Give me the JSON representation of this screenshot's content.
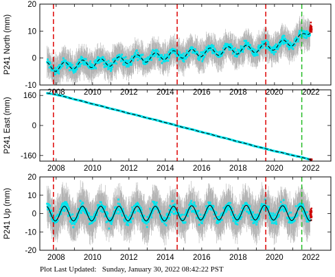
{
  "footer": {
    "label": "Plot Last Updated:",
    "timestamp": "Sunday, January 30, 2022 08:42:22 PST"
  },
  "colors": {
    "data_points": "#00e5ee",
    "error_bars": "#b0b0b0",
    "model": "#000000",
    "equipment_change": "#dd0000",
    "earthquake": "#22bb22",
    "recent_points": "#cc0000"
  },
  "chart_data": [
    {
      "type": "scatter",
      "ylabel": "P241 North (mm)",
      "xlim": [
        2007.1,
        2023.1
      ],
      "ylim": [
        -10,
        20
      ],
      "yticks": [
        -10,
        0,
        10,
        20
      ],
      "xticks": [
        2008,
        2010,
        2012,
        2014,
        2016,
        2018,
        2020,
        2022
      ],
      "xtick_labels": [
        "2008",
        "2010",
        "2012",
        "2014",
        "2016",
        "2018",
        "2020",
        "2022"
      ],
      "ytick_labels": [
        "-10",
        "0",
        "10",
        "20"
      ],
      "grid": false,
      "series": [
        {
          "x": [
            2007.5,
            2008.0,
            2009.0,
            2010.0,
            2011.0,
            2012.0,
            2013.0,
            2014.0,
            2014.6,
            2015.0,
            2016.0,
            2017.0,
            2018.0,
            2019.0,
            2019.5,
            2020.0,
            2021.0,
            2021.5,
            2022.0
          ],
          "y": [
            -3,
            -3.5,
            -2.5,
            -2,
            -1.5,
            -0.5,
            0,
            1,
            1.3,
            1.5,
            2,
            2.5,
            3,
            3.5,
            3.8,
            4.5,
            6,
            7.5,
            11
          ],
          "seasonal_amplitude": 1.5,
          "noise": 2.5
        }
      ],
      "vlines_red": [
        2007.85,
        2014.65,
        2019.52
      ],
      "vlines_green": [
        2021.5
      ]
    },
    {
      "type": "scatter",
      "ylabel": "P241 East (mm)",
      "xlim": [
        2007.1,
        2023.1
      ],
      "ylim": [
        -190,
        190
      ],
      "yticks": [
        -160,
        0,
        160
      ],
      "xticks": [
        2008,
        2010,
        2012,
        2014,
        2016,
        2018,
        2020,
        2022
      ],
      "xtick_labels": [
        "2008",
        "2010",
        "2012",
        "2014",
        "2016",
        "2018",
        "2020",
        "2022"
      ],
      "ytick_labels": [
        "-160",
        "0",
        "160"
      ],
      "grid": false,
      "series": [
        {
          "x": [
            2007.5,
            2008.0,
            2010.0,
            2012.0,
            2014.0,
            2014.6,
            2016.0,
            2018.0,
            2019.5,
            2020.0,
            2021.5,
            2022.0
          ],
          "y": [
            172,
            165,
            115,
            65,
            16,
            0,
            -35,
            -86,
            -124,
            -136,
            -170,
            -182
          ],
          "seasonal_amplitude": 0.5,
          "noise": 2
        }
      ],
      "vlines_red": [
        2007.85,
        2014.65,
        2019.52
      ],
      "vlines_green": [
        2021.5
      ]
    },
    {
      "type": "scatter",
      "ylabel": "P241 Up (mm)",
      "xlim": [
        2007.1,
        2023.1
      ],
      "ylim": [
        -20,
        20
      ],
      "yticks": [
        -20,
        -10,
        0,
        10,
        20
      ],
      "xticks": [
        2008,
        2010,
        2012,
        2014,
        2016,
        2018,
        2020,
        2022
      ],
      "xtick_labels": [
        "2008",
        "2010",
        "2012",
        "2014",
        "2016",
        "2018",
        "2020",
        "2022"
      ],
      "ytick_labels": [
        "-20",
        "-10",
        "0",
        "10",
        "20"
      ],
      "grid": false,
      "series": [
        {
          "x": [
            2007.5,
            2010.0,
            2014.6,
            2016.0,
            2019.5,
            2022.0
          ],
          "y": [
            0,
            0,
            0,
            0.5,
            0.5,
            0
          ],
          "seasonal_amplitude": 4,
          "noise": 5
        }
      ],
      "vlines_red": [
        2007.85,
        2014.65,
        2019.52
      ],
      "vlines_green": [
        2021.5
      ]
    }
  ]
}
